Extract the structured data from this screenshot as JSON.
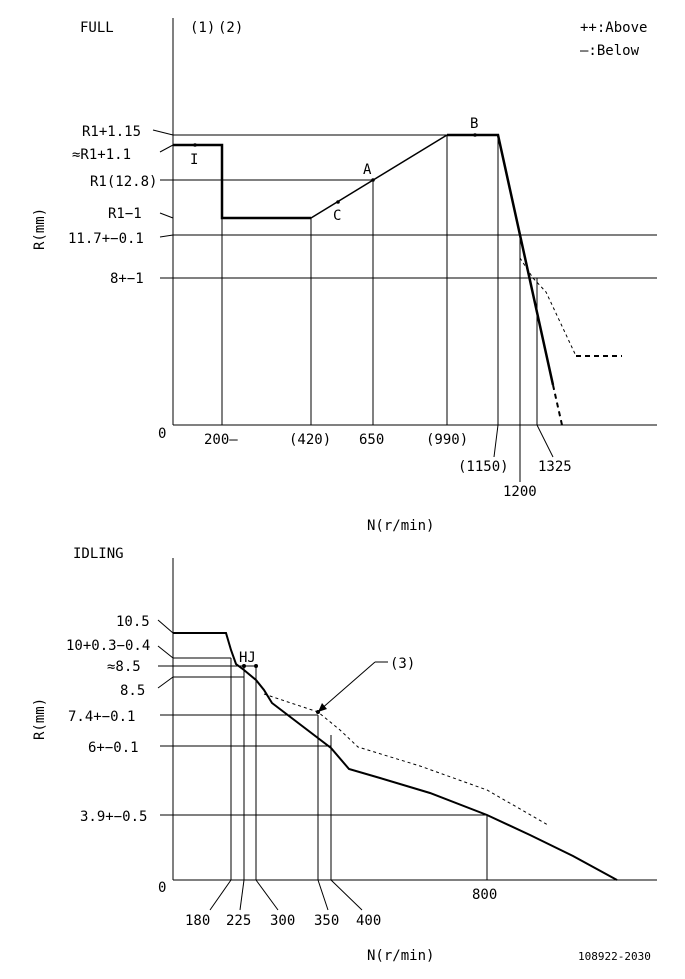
{
  "full_chart": {
    "title": "FULL",
    "notes": [
      "(1)",
      "(2)"
    ],
    "legend": {
      "above": "++:Above",
      "below": "—:Below"
    },
    "y_axis_label": "R(mm)",
    "x_axis_label": "N(r/min)",
    "origin_label": "0",
    "y_labels": [
      "R1+1.15",
      "≈R1+1.1",
      "R1(12.8)",
      "R1−1",
      "11.7+−0.1",
      "8+−1"
    ],
    "x_labels": [
      "200—",
      "(420)",
      "650",
      "(990)",
      "(1150)",
      "1200",
      "1325"
    ],
    "point_labels": [
      "I",
      "A",
      "B",
      "C"
    ]
  },
  "idle_chart": {
    "title": "IDLING",
    "y_axis_label": "R(mm)",
    "x_axis_label": "N(r/min)",
    "origin_label": "0",
    "y_labels": [
      "10.5",
      "10+0.3−0.4",
      "≈8.5",
      "8.5",
      "7.4+−0.1",
      "6+−0.1",
      "3.9+−0.5"
    ],
    "x_labels": [
      "180",
      "225",
      "300",
      "350",
      "400",
      "800"
    ],
    "point_labels": [
      "HJ"
    ],
    "note": "(3)"
  },
  "drawing_number": "108922-2030"
}
